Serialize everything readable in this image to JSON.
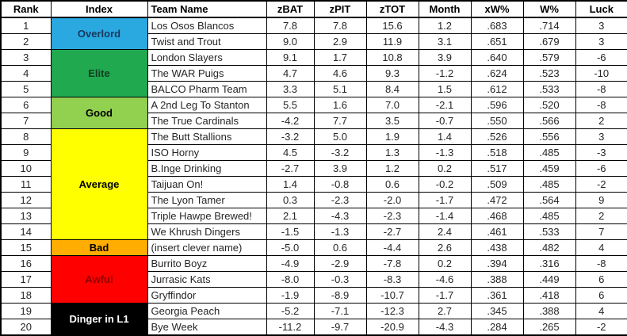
{
  "table": {
    "columns": [
      {
        "key": "rank",
        "label": "Rank"
      },
      {
        "key": "index",
        "label": "Index"
      },
      {
        "key": "team",
        "label": "Team Name"
      },
      {
        "key": "zbat",
        "label": "zBAT"
      },
      {
        "key": "zpit",
        "label": "zPIT"
      },
      {
        "key": "ztot",
        "label": "zTOT"
      },
      {
        "key": "month",
        "label": "Month"
      },
      {
        "key": "xw_pct",
        "label": "xW%"
      },
      {
        "key": "w_pct",
        "label": "W%"
      },
      {
        "key": "luck",
        "label": "Luck"
      }
    ],
    "index_groups": [
      {
        "label": "Overlord",
        "start": 1,
        "span": 2,
        "bg": "#29A9E0",
        "fg": "#17375E"
      },
      {
        "label": "Elite",
        "start": 3,
        "span": 3,
        "bg": "#21A94F",
        "fg": "#0E3D22"
      },
      {
        "label": "Good",
        "start": 6,
        "span": 2,
        "bg": "#92D050",
        "fg": "#000000"
      },
      {
        "label": "Average",
        "start": 8,
        "span": 7,
        "bg": "#FFFF00",
        "fg": "#000000"
      },
      {
        "label": "Bad",
        "start": 15,
        "span": 1,
        "bg": "#FFAD00",
        "fg": "#000000"
      },
      {
        "label": "Awful",
        "start": 16,
        "span": 3,
        "bg": "#FF0000",
        "fg": "#8B0000"
      },
      {
        "label": "Dinger in L1",
        "start": 19,
        "span": 2,
        "bg": "#000000",
        "fg": "#FFFFFF"
      }
    ],
    "rows": [
      {
        "rank": "1",
        "team": "Los Osos Blancos",
        "zbat": "7.8",
        "zpit": "7.8",
        "ztot": "15.6",
        "month": "1.2",
        "xw_pct": ".683",
        "w_pct": ".714",
        "luck": "3"
      },
      {
        "rank": "2",
        "team": "Twist and Trout",
        "zbat": "9.0",
        "zpit": "2.9",
        "ztot": "11.9",
        "month": "3.1",
        "xw_pct": ".651",
        "w_pct": ".679",
        "luck": "3"
      },
      {
        "rank": "3",
        "team": "London Slayers",
        "zbat": "9.1",
        "zpit": "1.7",
        "ztot": "10.8",
        "month": "3.9",
        "xw_pct": ".640",
        "w_pct": ".579",
        "luck": "-6"
      },
      {
        "rank": "4",
        "team": "The WAR Puigs",
        "zbat": "4.7",
        "zpit": "4.6",
        "ztot": "9.3",
        "month": "-1.2",
        "xw_pct": ".624",
        "w_pct": ".523",
        "luck": "-10"
      },
      {
        "rank": "5",
        "team": "BALCO Pharm Team",
        "zbat": "3.3",
        "zpit": "5.1",
        "ztot": "8.4",
        "month": "1.5",
        "xw_pct": ".612",
        "w_pct": ".533",
        "luck": "-8"
      },
      {
        "rank": "6",
        "team": "A 2nd Leg To Stanton",
        "zbat": "5.5",
        "zpit": "1.6",
        "ztot": "7.0",
        "month": "-2.1",
        "xw_pct": ".596",
        "w_pct": ".520",
        "luck": "-8"
      },
      {
        "rank": "7",
        "team": "The True Cardinals",
        "zbat": "-4.2",
        "zpit": "7.7",
        "ztot": "3.5",
        "month": "-0.7",
        "xw_pct": ".550",
        "w_pct": ".566",
        "luck": "2"
      },
      {
        "rank": "8",
        "team": "The Butt Stallions",
        "zbat": "-3.2",
        "zpit": "5.0",
        "ztot": "1.9",
        "month": "1.4",
        "xw_pct": ".526",
        "w_pct": ".556",
        "luck": "3"
      },
      {
        "rank": "9",
        "team": "ISO Horny",
        "zbat": "4.5",
        "zpit": "-3.2",
        "ztot": "1.3",
        "month": "-1.3",
        "xw_pct": ".518",
        "w_pct": ".485",
        "luck": "-3"
      },
      {
        "rank": "10",
        "team": "B.Inge Drinking",
        "zbat": "-2.7",
        "zpit": "3.9",
        "ztot": "1.2",
        "month": "0.2",
        "xw_pct": ".517",
        "w_pct": ".459",
        "luck": "-6"
      },
      {
        "rank": "11",
        "team": "Taijuan On!",
        "zbat": "1.4",
        "zpit": "-0.8",
        "ztot": "0.6",
        "month": "-0.2",
        "xw_pct": ".509",
        "w_pct": ".485",
        "luck": "-2"
      },
      {
        "rank": "12",
        "team": "The Lyon Tamer",
        "zbat": "0.3",
        "zpit": "-2.3",
        "ztot": "-2.0",
        "month": "-1.7",
        "xw_pct": ".472",
        "w_pct": ".564",
        "luck": "9"
      },
      {
        "rank": "13",
        "team": "Triple Hawpe Brewed!",
        "zbat": "2.1",
        "zpit": "-4.3",
        "ztot": "-2.3",
        "month": "-1.4",
        "xw_pct": ".468",
        "w_pct": ".485",
        "luck": "2"
      },
      {
        "rank": "14",
        "team": "We Khrush Dingers",
        "zbat": "-1.5",
        "zpit": "-1.3",
        "ztot": "-2.7",
        "month": "2.4",
        "xw_pct": ".461",
        "w_pct": ".533",
        "luck": "7"
      },
      {
        "rank": "15",
        "team": "(insert clever name)",
        "zbat": "-5.0",
        "zpit": "0.6",
        "ztot": "-4.4",
        "month": "2.6",
        "xw_pct": ".438",
        "w_pct": ".482",
        "luck": "4"
      },
      {
        "rank": "16",
        "team": "Burrito Boyz",
        "zbat": "-4.9",
        "zpit": "-2.9",
        "ztot": "-7.8",
        "month": "0.2",
        "xw_pct": ".394",
        "w_pct": ".316",
        "luck": "-8"
      },
      {
        "rank": "17",
        "team": "Jurrasic Kats",
        "zbat": "-8.0",
        "zpit": "-0.3",
        "ztot": "-8.3",
        "month": "-4.6",
        "xw_pct": ".388",
        "w_pct": ".449",
        "luck": "6"
      },
      {
        "rank": "18",
        "team": "Gryffindor",
        "zbat": "-1.9",
        "zpit": "-8.9",
        "ztot": "-10.7",
        "month": "-1.7",
        "xw_pct": ".361",
        "w_pct": ".418",
        "luck": "6"
      },
      {
        "rank": "19",
        "team": "Georgia Peach",
        "zbat": "-5.2",
        "zpit": "-7.1",
        "ztot": "-12.3",
        "month": "2.7",
        "xw_pct": ".345",
        "w_pct": ".388",
        "luck": "4"
      },
      {
        "rank": "20",
        "team": "Bye Week",
        "zbat": "-11.2",
        "zpit": "-9.7",
        "ztot": "-20.9",
        "month": "-4.3",
        "xw_pct": ".284",
        "w_pct": ".265",
        "luck": "-2"
      }
    ]
  }
}
